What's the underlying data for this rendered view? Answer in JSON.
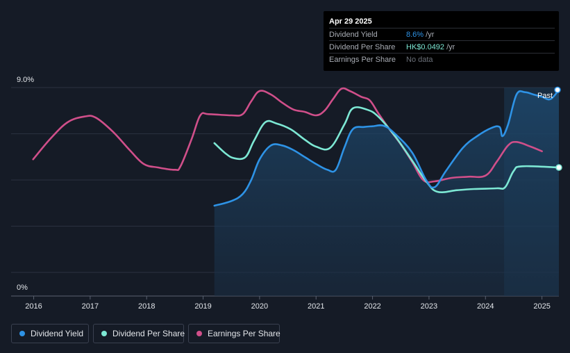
{
  "tooltip": {
    "date": "Apr 29 2025",
    "rows": [
      {
        "label": "Dividend Yield",
        "value": "8.6%",
        "unit": " /yr",
        "color": "#2e93e6"
      },
      {
        "label": "Dividend Per Share",
        "value": "HK$0.0492",
        "unit": " /yr",
        "color": "#7de8d4"
      },
      {
        "label": "Earnings Per Share",
        "value": "No data",
        "unit": "",
        "color": "#6b7079"
      }
    ]
  },
  "past_label": "Past",
  "legend": [
    {
      "label": "Dividend Yield",
      "color": "#2e93e6"
    },
    {
      "label": "Dividend Per Share",
      "color": "#7de8d4"
    },
    {
      "label": "Earnings Per Share",
      "color": "#d04f8a"
    }
  ],
  "chart_data": {
    "type": "line",
    "y_tick_labels": [
      "9.0%",
      "0%"
    ],
    "ylim": [
      0,
      9.0
    ],
    "xlim": [
      2015.6,
      2025.3
    ],
    "x_ticks": [
      2016,
      2017,
      2018,
      2019,
      2020,
      2021,
      2022,
      2023,
      2024,
      2025
    ],
    "x_tick_labels": [
      "2016",
      "2017",
      "2018",
      "2019",
      "2020",
      "2021",
      "2022",
      "2023",
      "2024",
      "2025"
    ],
    "grid": true,
    "past_region_start": 2024.33,
    "series": [
      {
        "name": "Dividend Yield",
        "color": "#2e93e6",
        "area": true,
        "points": [
          [
            2019.2,
            3.9
          ],
          [
            2019.5,
            4.1
          ],
          [
            2019.7,
            4.4
          ],
          [
            2019.85,
            5.0
          ],
          [
            2020.0,
            5.9
          ],
          [
            2020.2,
            6.5
          ],
          [
            2020.4,
            6.5
          ],
          [
            2020.6,
            6.3
          ],
          [
            2020.8,
            6.0
          ],
          [
            2021.0,
            5.7
          ],
          [
            2021.2,
            5.45
          ],
          [
            2021.35,
            5.45
          ],
          [
            2021.5,
            6.4
          ],
          [
            2021.65,
            7.2
          ],
          [
            2021.85,
            7.3
          ],
          [
            2022.0,
            7.33
          ],
          [
            2022.2,
            7.35
          ],
          [
            2022.4,
            7.0
          ],
          [
            2022.7,
            6.2
          ],
          [
            2022.95,
            5.0
          ],
          [
            2023.1,
            4.7
          ],
          [
            2023.3,
            5.4
          ],
          [
            2023.6,
            6.4
          ],
          [
            2023.85,
            6.9
          ],
          [
            2024.1,
            7.25
          ],
          [
            2024.25,
            7.3
          ],
          [
            2024.3,
            6.9
          ],
          [
            2024.4,
            7.4
          ],
          [
            2024.55,
            8.7
          ],
          [
            2024.7,
            8.8
          ],
          [
            2024.85,
            8.7
          ],
          [
            2025.0,
            8.6
          ],
          [
            2025.15,
            8.5
          ],
          [
            2025.3,
            8.9
          ]
        ]
      },
      {
        "name": "Dividend Per Share",
        "color": "#7de8d4",
        "area": false,
        "points": [
          [
            2019.2,
            6.6
          ],
          [
            2019.4,
            6.15
          ],
          [
            2019.55,
            5.95
          ],
          [
            2019.75,
            6.0
          ],
          [
            2019.9,
            6.7
          ],
          [
            2020.1,
            7.5
          ],
          [
            2020.3,
            7.45
          ],
          [
            2020.55,
            7.2
          ],
          [
            2020.8,
            6.75
          ],
          [
            2021.0,
            6.45
          ],
          [
            2021.25,
            6.4
          ],
          [
            2021.5,
            7.4
          ],
          [
            2021.65,
            8.1
          ],
          [
            2021.9,
            8.05
          ],
          [
            2022.1,
            7.75
          ],
          [
            2022.4,
            6.9
          ],
          [
            2022.7,
            5.85
          ],
          [
            2022.95,
            4.95
          ],
          [
            2023.15,
            4.5
          ],
          [
            2023.5,
            4.57
          ],
          [
            2023.8,
            4.62
          ],
          [
            2024.2,
            4.65
          ],
          [
            2024.35,
            4.7
          ],
          [
            2024.5,
            5.4
          ],
          [
            2024.65,
            5.6
          ],
          [
            2025.3,
            5.55
          ]
        ]
      },
      {
        "name": "Earnings Per Share",
        "color": "#d04f8a",
        "area": false,
        "points": [
          [
            2015.99,
            5.9
          ],
          [
            2016.3,
            6.8
          ],
          [
            2016.6,
            7.5
          ],
          [
            2016.9,
            7.75
          ],
          [
            2017.1,
            7.7
          ],
          [
            2017.4,
            7.1
          ],
          [
            2017.7,
            6.3
          ],
          [
            2017.95,
            5.7
          ],
          [
            2018.2,
            5.55
          ],
          [
            2018.5,
            5.45
          ],
          [
            2018.6,
            5.6
          ],
          [
            2018.8,
            6.8
          ],
          [
            2018.95,
            7.8
          ],
          [
            2019.1,
            7.85
          ],
          [
            2019.5,
            7.8
          ],
          [
            2019.7,
            7.85
          ],
          [
            2019.85,
            8.4
          ],
          [
            2020.0,
            8.85
          ],
          [
            2020.2,
            8.7
          ],
          [
            2020.4,
            8.35
          ],
          [
            2020.6,
            8.05
          ],
          [
            2020.8,
            7.95
          ],
          [
            2021.0,
            7.8
          ],
          [
            2021.15,
            8.0
          ],
          [
            2021.3,
            8.5
          ],
          [
            2021.45,
            8.95
          ],
          [
            2021.6,
            8.85
          ],
          [
            2021.8,
            8.6
          ],
          [
            2021.95,
            8.45
          ],
          [
            2022.1,
            7.9
          ],
          [
            2022.3,
            7.2
          ],
          [
            2022.5,
            6.55
          ],
          [
            2022.7,
            5.8
          ],
          [
            2022.9,
            5.0
          ],
          [
            2023.1,
            4.95
          ],
          [
            2023.4,
            5.1
          ],
          [
            2023.7,
            5.15
          ],
          [
            2024.0,
            5.2
          ],
          [
            2024.2,
            5.8
          ],
          [
            2024.4,
            6.5
          ],
          [
            2024.55,
            6.65
          ],
          [
            2024.8,
            6.45
          ],
          [
            2025.0,
            6.25
          ]
        ]
      }
    ]
  }
}
